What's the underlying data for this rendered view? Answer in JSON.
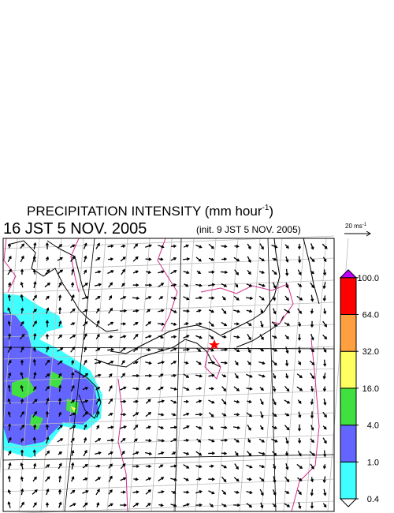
{
  "header": {
    "title": "PRECIPITATION INTENSITY (mm hour",
    "title_exponent": "-1",
    "title_close": ")",
    "valid_time": "16 JST 5 NOV. 2005",
    "init_time": "(init. 9 JST 5 NOV. 2005)"
  },
  "vector_key": {
    "label": "20 ms",
    "exponent": "-1"
  },
  "colorbar": {
    "levels": [
      {
        "value": 0.4,
        "label": "0.4"
      },
      {
        "value": 1,
        "label": "1.0"
      },
      {
        "value": 4,
        "label": "4.0"
      },
      {
        "value": 16,
        "label": "16.0"
      },
      {
        "value": 32,
        "label": "32.0"
      },
      {
        "value": 64,
        "label": "64.0"
      },
      {
        "value": 100,
        "label": "100.0"
      }
    ],
    "under_color": "#ffffff",
    "colors": [
      "#40ffff",
      "#6464ff",
      "#40e040",
      "#ffff60",
      "#ffa040",
      "#ff0000"
    ],
    "over_color": "#c000ff"
  }
}
